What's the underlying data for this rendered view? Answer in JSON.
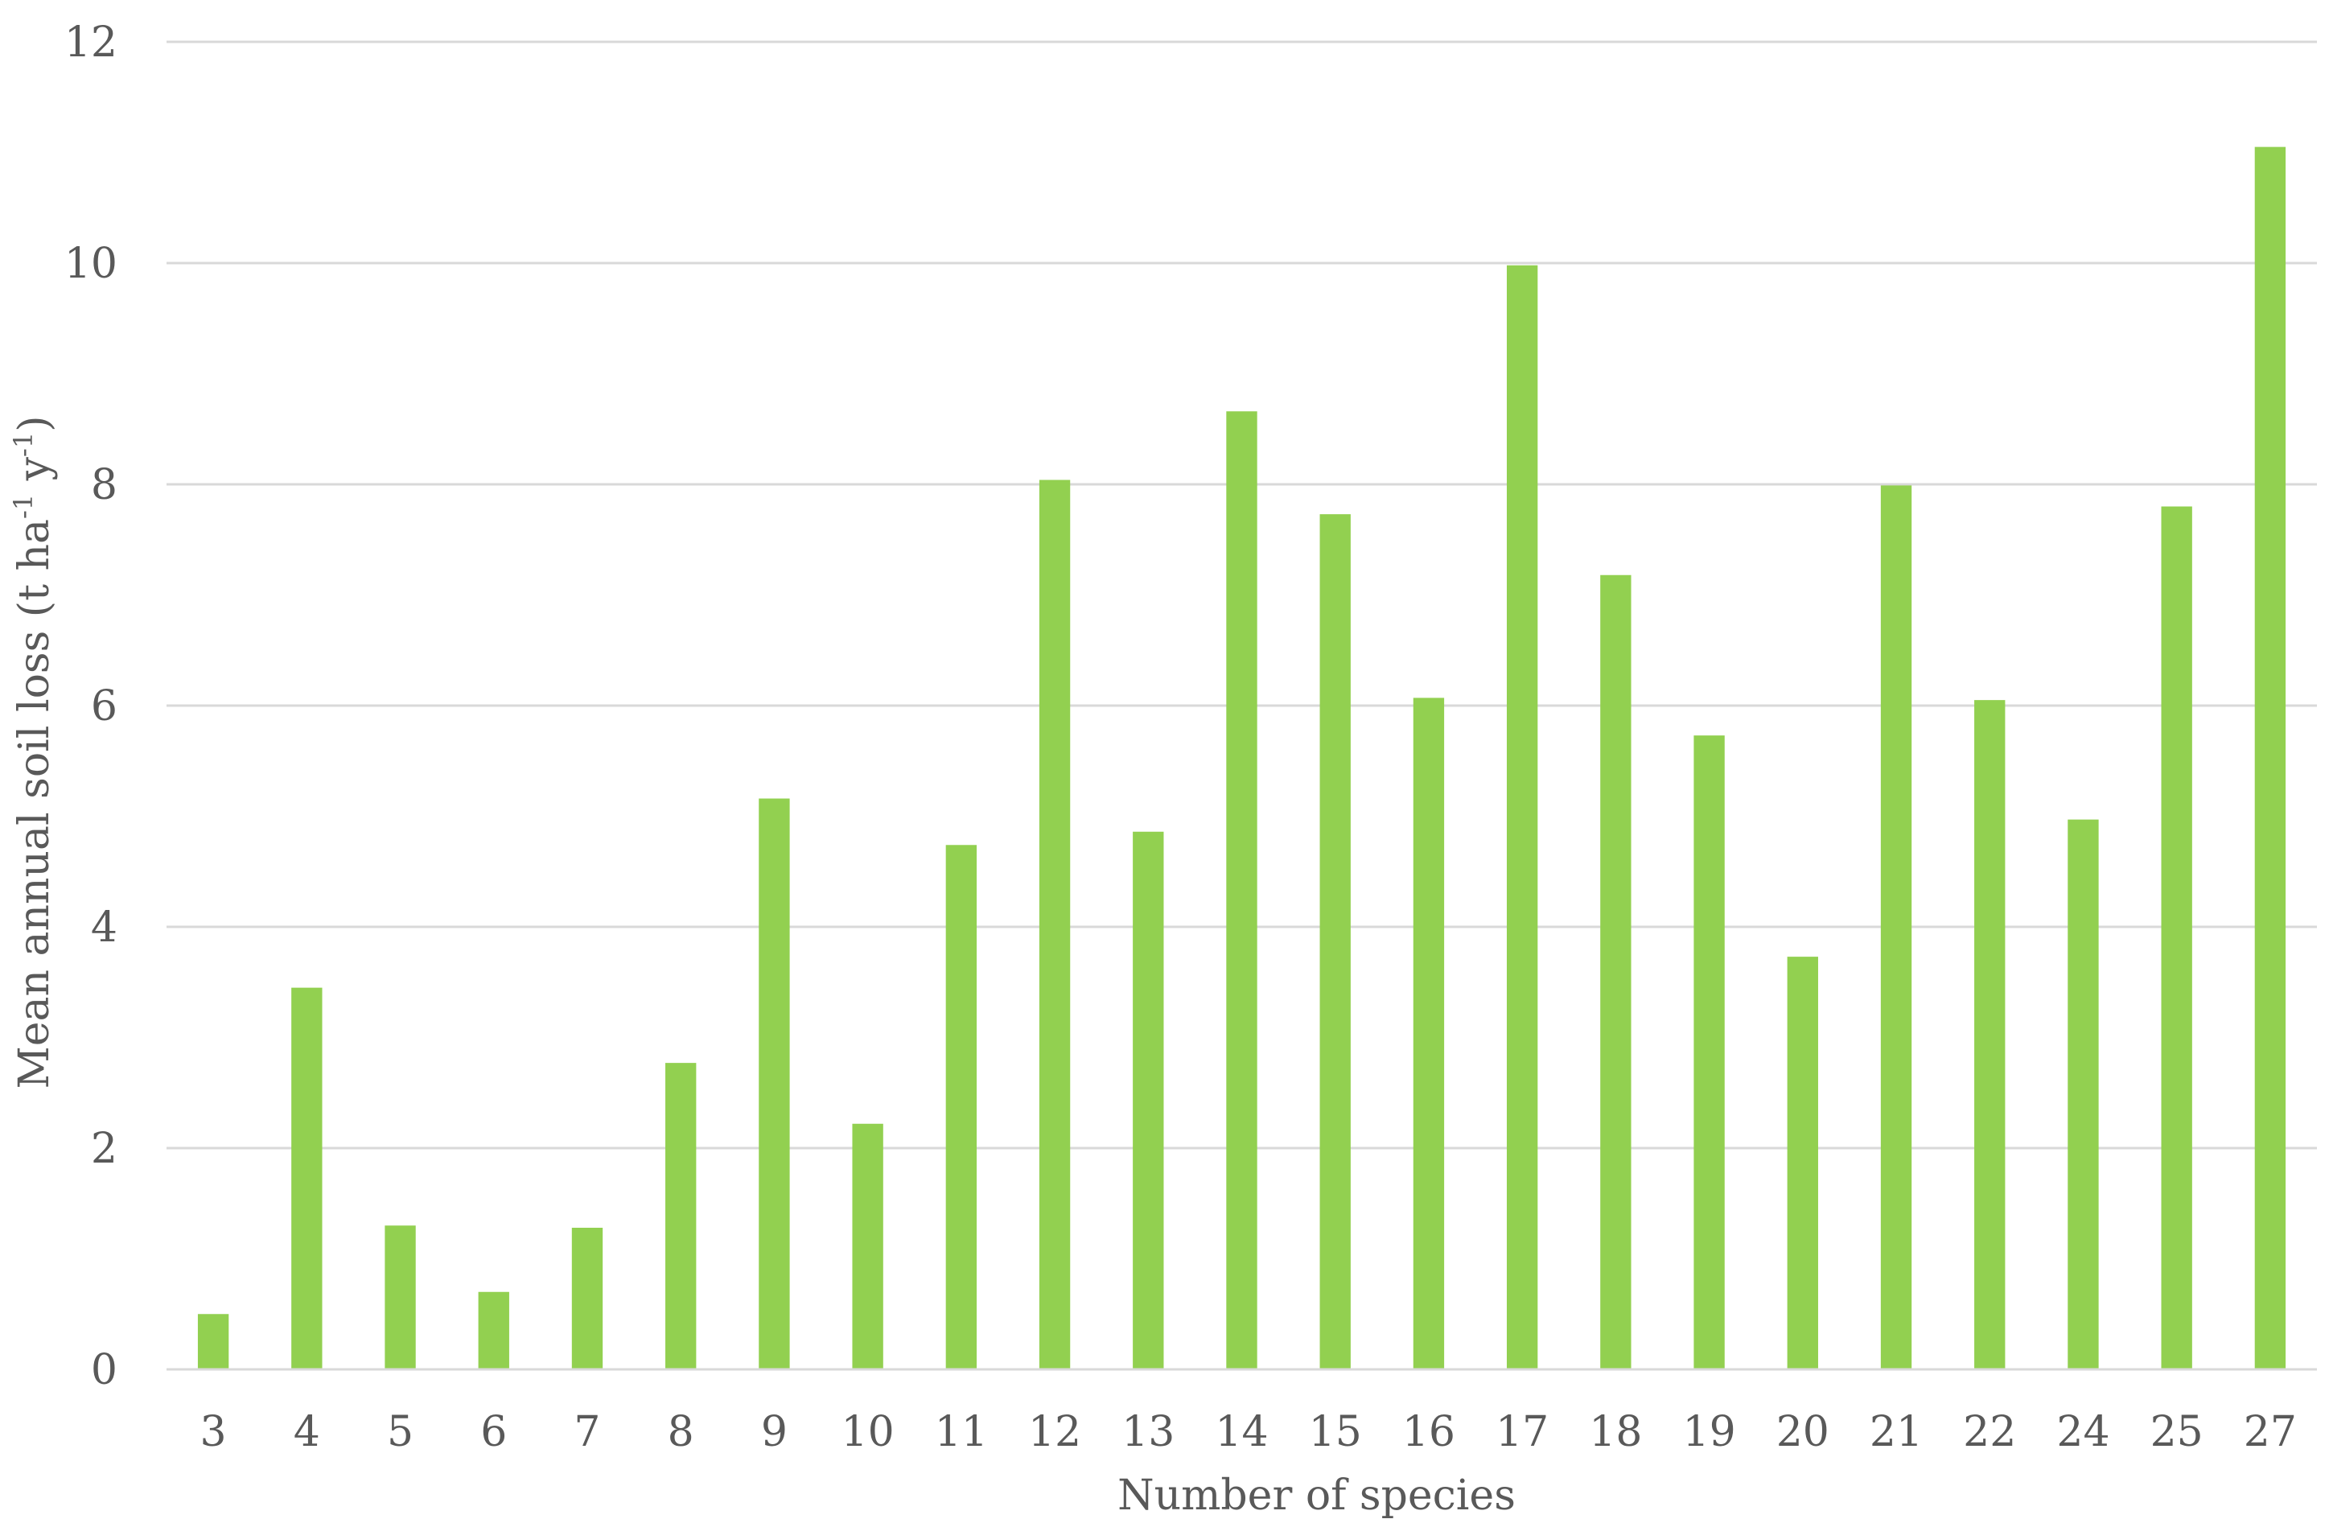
{
  "chart_data": {
    "type": "bar",
    "title": "",
    "xlabel": "Number of species",
    "ylabel": {
      "main": "Mean annual soil loss (t ha",
      "sup1": "-1",
      "mid": " y",
      "sup2": "-1",
      "end": ")"
    },
    "categories": [
      "3",
      "4",
      "5",
      "6",
      "7",
      "8",
      "9",
      "10",
      "11",
      "12",
      "13",
      "14",
      "15",
      "16",
      "17",
      "18",
      "19",
      "20",
      "21",
      "22",
      "24",
      "25",
      "27"
    ],
    "values": [
      0.5,
      3.45,
      1.3,
      0.7,
      1.28,
      2.77,
      5.16,
      2.22,
      4.74,
      8.04,
      4.86,
      8.66,
      7.73,
      6.07,
      9.98,
      7.18,
      5.73,
      3.73,
      7.99,
      6.05,
      4.97,
      7.8,
      11.05
    ],
    "ylim": [
      0,
      12
    ],
    "yticks": [
      0,
      2,
      4,
      6,
      8,
      10,
      12
    ],
    "grid": true,
    "legend": "none",
    "colors": {
      "bar": "#92d050",
      "grid": "#d9d9d9",
      "axis": "#d9d9d9",
      "text": "#595959"
    }
  }
}
